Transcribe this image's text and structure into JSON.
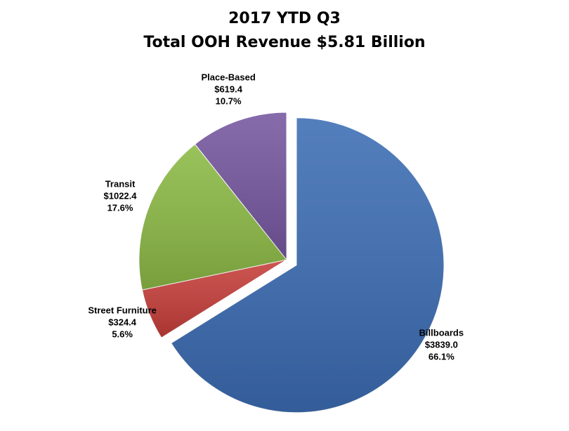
{
  "chart_data": {
    "type": "pie",
    "title": [
      "2017 YTD Q3",
      "Total OOH Revenue $5.81 Billion"
    ],
    "categories": [
      "Billboards",
      "Street Furniture",
      "Transit",
      "Place-Based"
    ],
    "values": [
      3839.0,
      324.4,
      1022.4,
      619.4
    ],
    "value_labels": [
      "$3839.0",
      "$324.4",
      "$1022.4",
      "$619.4"
    ],
    "percents": [
      66.1,
      5.6,
      17.6,
      10.7
    ],
    "percent_labels": [
      "66.1%",
      "5.6%",
      "17.6%",
      "10.7%"
    ],
    "colors": [
      "#3c6db4",
      "#c63e3a",
      "#8cba45",
      "#7657a0"
    ],
    "exploded": [
      0
    ]
  }
}
